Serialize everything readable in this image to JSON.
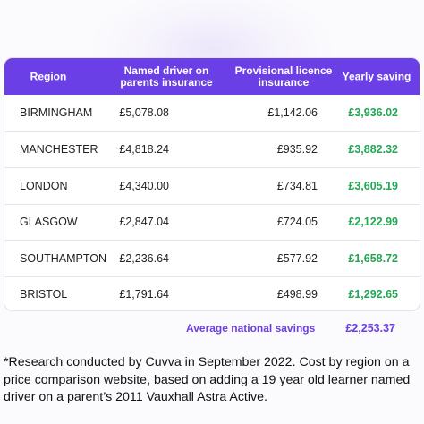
{
  "table": {
    "headers": [
      "Region",
      "Named driver on parents insurance",
      "Provisional licence insurance",
      "Yearly saving"
    ],
    "rows": [
      [
        "BIRMINGHAM",
        "£5,078.08",
        "£1,142.06",
        "£3,936.02"
      ],
      [
        "MANCHESTER",
        "£4,818.24",
        "£935.92",
        "£3,882.32"
      ],
      [
        "LONDON",
        "£4,340.00",
        "£734.81",
        "£3,605.19"
      ],
      [
        "GLASGOW",
        "£2,847.04",
        "£724.05",
        "£2,122.99"
      ],
      [
        "SOUTHAMPTON",
        "£2,236.64",
        "£577.92",
        "£1,658.72"
      ],
      [
        "BRISTOL",
        "£1,791.64",
        "£498.99",
        "£1,292.65"
      ]
    ],
    "average_label": "Average national savings",
    "average_value": "£2,253.37"
  },
  "note": "*Research conducted by Cuvva in September 2022. Cost by region on a price comparison website, based on adding a 19 year old learner named driver on a parent’s 2011 Vauxhall Astra Active."
}
